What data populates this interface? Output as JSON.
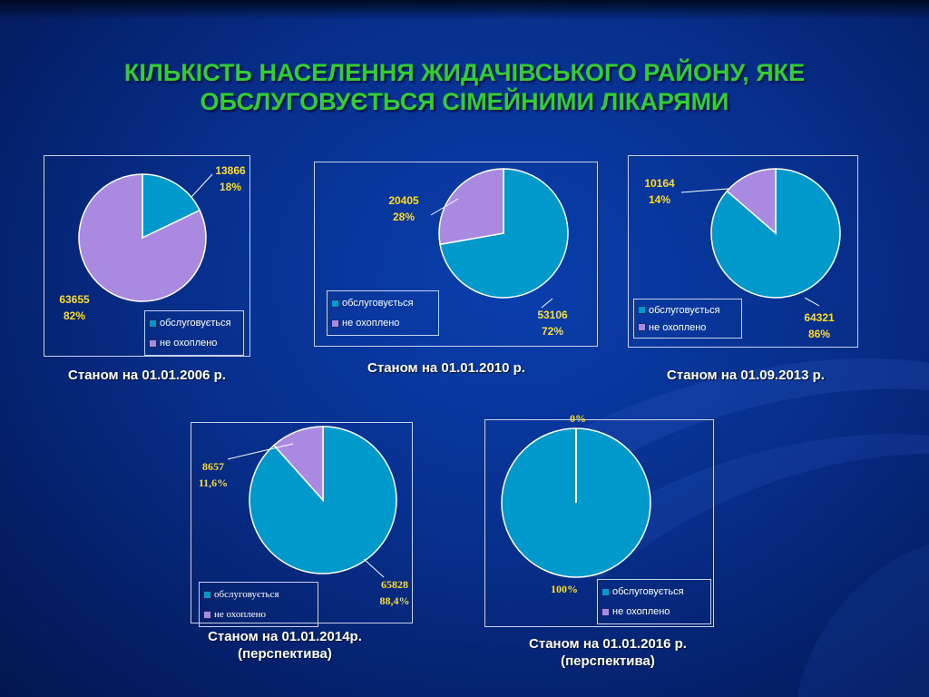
{
  "title": {
    "line1": "КІЛЬКІСТЬ НАСЕЛЕННЯ ЖИДАЧІВСЬКОГО РАЙОНУ,  ЯКЕ",
    "line2": "ОБСЛУГОВУЄТЬСЯ СІМЕЙНИМИ ЛІКАРЯМИ"
  },
  "colors": {
    "served": "#0099cc",
    "not_covered": "#a98ae0",
    "label_text": "#ffdd22"
  },
  "legend": {
    "served": "обслуговується",
    "not_covered": "не охоплено"
  },
  "chart_data": [
    {
      "type": "pie",
      "caption": [
        "Станом на 01.01.2006 р."
      ],
      "categories": [
        "обслуговується",
        "не охоплено"
      ],
      "values": [
        13866,
        63655
      ],
      "value_labels": [
        "13866",
        "63655"
      ],
      "percent_labels": [
        "18%",
        "82%"
      ]
    },
    {
      "type": "pie",
      "caption": [
        "Станом на 01.01.2010 р."
      ],
      "categories": [
        "обслуговується",
        "не охоплено"
      ],
      "values": [
        53106,
        20405
      ],
      "value_labels": [
        "53106",
        "20405"
      ],
      "percent_labels": [
        "72%",
        "28%"
      ]
    },
    {
      "type": "pie",
      "caption": [
        "Станом на 01.09.2013 р."
      ],
      "categories": [
        "обслуговується",
        "не охоплено"
      ],
      "values": [
        64321,
        10164
      ],
      "value_labels": [
        "64321",
        "10164"
      ],
      "percent_labels": [
        "86%",
        "14%"
      ]
    },
    {
      "type": "pie",
      "caption": [
        "Станом на 01.01.2014р.",
        "(перспектива)"
      ],
      "categories": [
        "обслуговується",
        "не охоплено"
      ],
      "values": [
        65828,
        8657
      ],
      "value_labels": [
        "65828",
        "8657"
      ],
      "percent_labels": [
        "88,4%",
        "11,6%"
      ]
    },
    {
      "type": "pie",
      "caption": [
        "Станом на 01.01.2016 р.",
        "(перспектива)"
      ],
      "categories": [
        "обслуговується",
        "не охоплено"
      ],
      "values": [
        100,
        0
      ],
      "value_labels": [
        "",
        ""
      ],
      "percent_labels": [
        "100%",
        "0%"
      ]
    }
  ]
}
